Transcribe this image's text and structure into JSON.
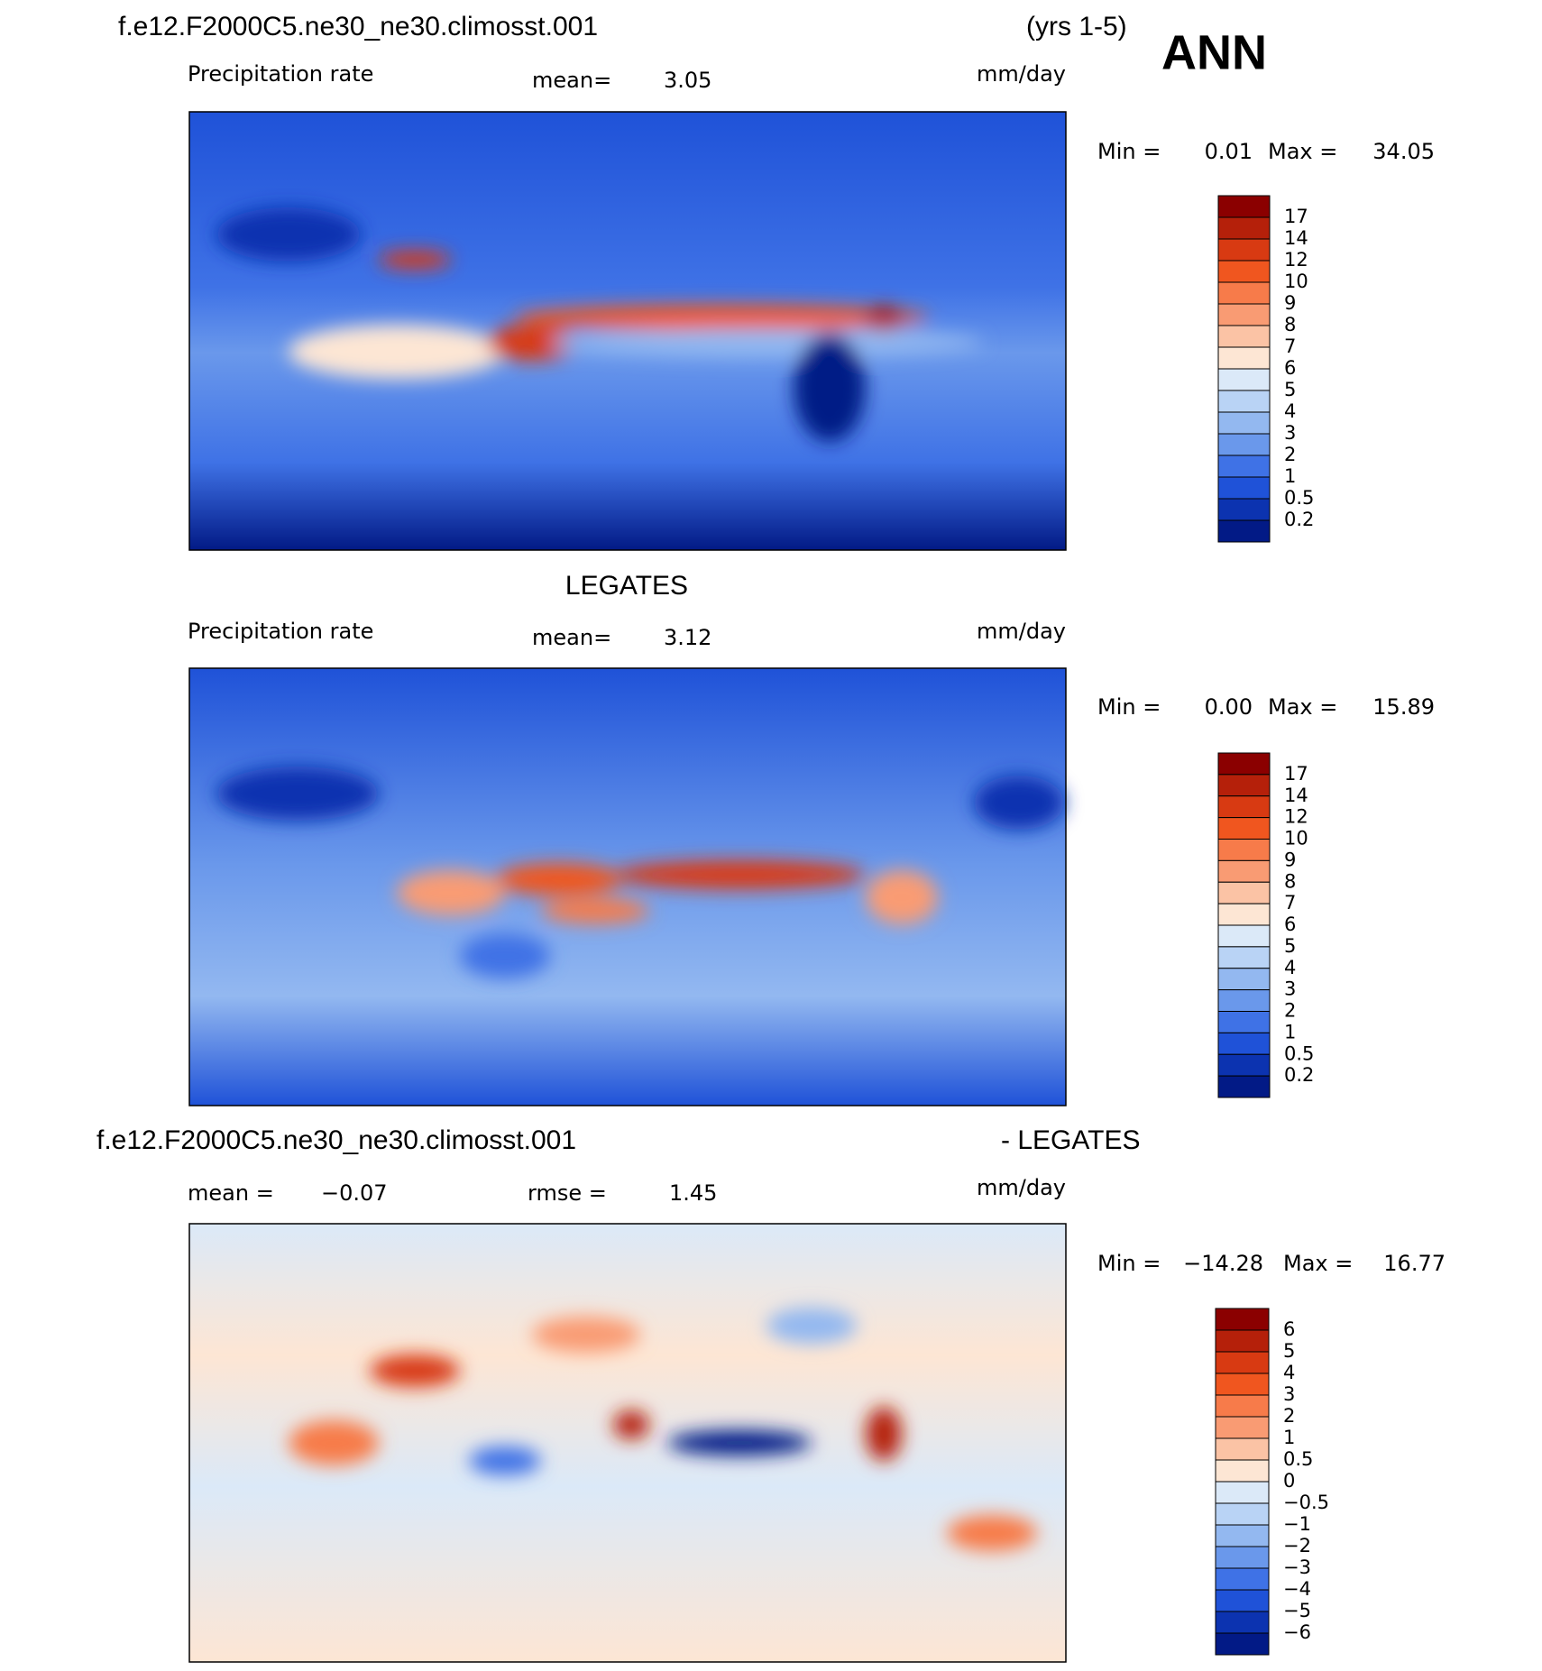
{
  "header": {
    "case": "f.e12.F2000C5.ne30_ne30.climosst.001",
    "years": "(yrs 1-5)",
    "season": "ANN"
  },
  "panels": [
    {
      "title": null,
      "field": "Precipitation rate",
      "mean_label": "mean=",
      "mean": "3.05",
      "units": "mm/day",
      "min_label": "Min =",
      "min": "0.01",
      "max_label": "Max =",
      "max": "34.05",
      "colorbar": {
        "labels": [
          "17",
          "14",
          "12",
          "10",
          "9",
          "8",
          "7",
          "6",
          "5",
          "4",
          "3",
          "2",
          "1",
          "0.5",
          "0.2"
        ],
        "colors": [
          "#8b0000",
          "#b5200a",
          "#d83a12",
          "#f0561f",
          "#f77b4a",
          "#f99b73",
          "#fbc3a5",
          "#fde6d4",
          "#dbe9f8",
          "#b9d3f5",
          "#93b8f0",
          "#6a98eb",
          "#3f72e6",
          "#1f52d8",
          "#0c33b0",
          "#021a86"
        ]
      }
    },
    {
      "title": "LEGATES",
      "field": "Precipitation rate",
      "mean_label": "mean=",
      "mean": "3.12",
      "units": "mm/day",
      "min_label": "Min =",
      "min": "0.00",
      "max_label": "Max =",
      "max": "15.89",
      "colorbar": {
        "labels": [
          "17",
          "14",
          "12",
          "10",
          "9",
          "8",
          "7",
          "6",
          "5",
          "4",
          "3",
          "2",
          "1",
          "0.5",
          "0.2"
        ],
        "colors": [
          "#8b0000",
          "#b5200a",
          "#d83a12",
          "#f0561f",
          "#f77b4a",
          "#f99b73",
          "#fbc3a5",
          "#fde6d4",
          "#dbe9f8",
          "#b9d3f5",
          "#93b8f0",
          "#6a98eb",
          "#3f72e6",
          "#1f52d8",
          "#0c33b0",
          "#021a86"
        ]
      }
    },
    {
      "title": "f.e12.F2000C5.ne30_ne30.climosst.001",
      "title_right": "- LEGATES",
      "mean_label": "mean =",
      "mean": "−0.07",
      "rmse_label": "rmse =",
      "rmse": "1.45",
      "units": "mm/day",
      "min_label": "Min =",
      "min": "−14.28",
      "max_label": "Max =",
      "max": "16.77",
      "colorbar": {
        "labels": [
          "6",
          "5",
          "4",
          "3",
          "2",
          "1",
          "0.5",
          "0",
          "−0.5",
          "−1",
          "−2",
          "−3",
          "−4",
          "−5",
          "−6"
        ],
        "colors": [
          "#8b0000",
          "#b5200a",
          "#d83a12",
          "#f0561f",
          "#f77b4a",
          "#f99b73",
          "#fbc3a5",
          "#fde6d4",
          "#dbe9f8",
          "#b9d3f5",
          "#93b8f0",
          "#6a98eb",
          "#3f72e6",
          "#1f52d8",
          "#0c33b0",
          "#021a86"
        ]
      }
    }
  ]
}
